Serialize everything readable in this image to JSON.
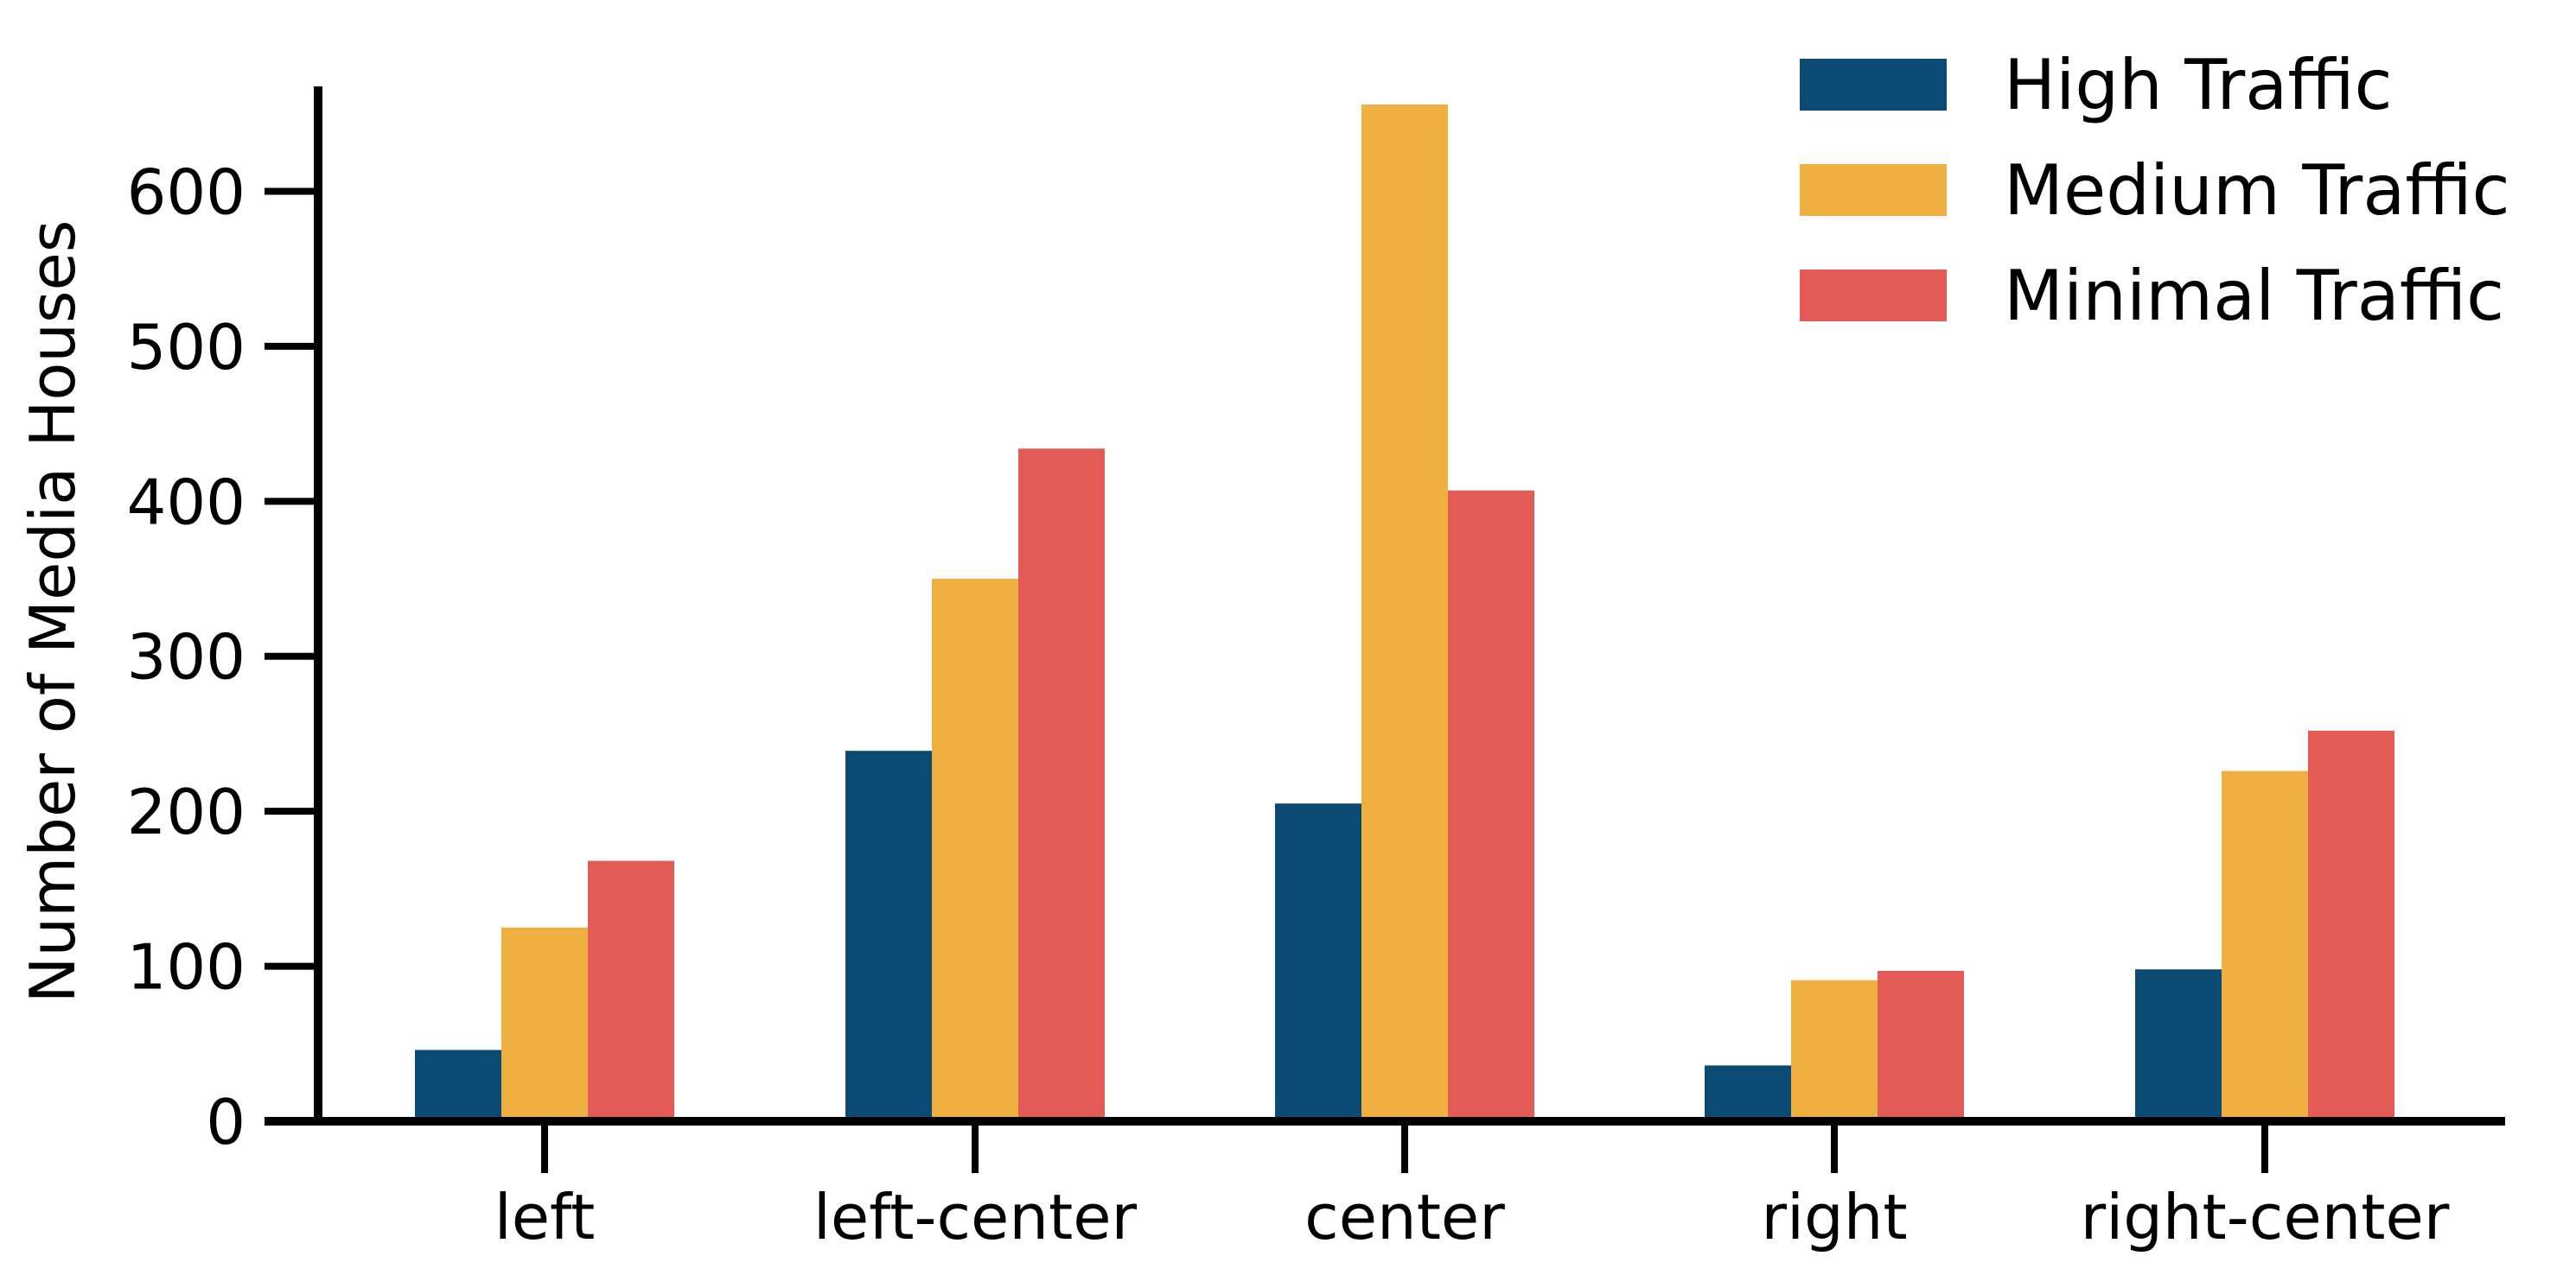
{
  "chart_data": {
    "type": "bar",
    "title": "",
    "xlabel": "",
    "ylabel": "Number of Media Houses",
    "categories": [
      "left",
      "left-center",
      "center",
      "right",
      "right-center"
    ],
    "series": [
      {
        "name": "High Traffic",
        "color": "#0b4a73",
        "values": [
          46,
          239,
          205,
          36,
          98
        ]
      },
      {
        "name": "Medium Traffic",
        "color": "#efb041",
        "values": [
          125,
          350,
          656,
          91,
          226
        ]
      },
      {
        "name": "Minimal Traffic",
        "color": "#e35b56",
        "values": [
          168,
          434,
          407,
          97,
          252
        ]
      }
    ],
    "ylim": [
      0,
      690
    ],
    "yticks": [
      0,
      100,
      200,
      300,
      400,
      500,
      600
    ],
    "grid": false,
    "legend": "top-right"
  }
}
